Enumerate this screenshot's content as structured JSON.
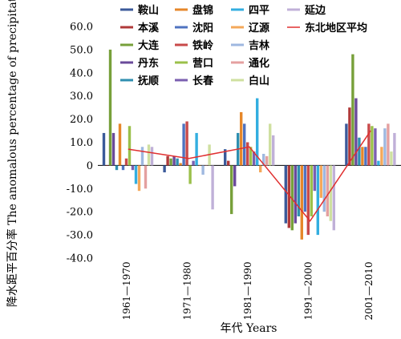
{
  "chart_data": {
    "type": "bar",
    "xlabel": "年代 Years",
    "ylabel": "降水距平百分率 The anomalous percentage of precipitation/%",
    "ylim": [
      -40,
      60
    ],
    "y_ticks": [
      "60.0",
      "50.0",
      "40.0",
      "30.0",
      "20.0",
      "10.0",
      "0",
      "-10.0",
      "-20.0",
      "-30.0",
      "-40.0"
    ],
    "categories": [
      "1961—1970",
      "1971—1980",
      "1981—1990",
      "1991—2000",
      "2001—2010"
    ],
    "series": [
      {
        "name": "鞍山",
        "color": "#3b5a9a",
        "values": [
          14,
          -3,
          7,
          -25,
          18
        ]
      },
      {
        "name": "本溪",
        "color": "#b03a3a",
        "values": [
          0,
          4,
          2,
          -27,
          25
        ]
      },
      {
        "name": "大连",
        "color": "#77a03a",
        "values": [
          50,
          3,
          -21,
          -28,
          48
        ]
      },
      {
        "name": "丹东",
        "color": "#6a4a9a",
        "values": [
          14,
          4,
          -9,
          -25,
          29
        ]
      },
      {
        "name": "抚顺",
        "color": "#2f8fb0",
        "values": [
          -2,
          3,
          14,
          -22,
          12
        ]
      },
      {
        "name": "盘锦",
        "color": "#e6872a",
        "values": [
          18,
          1,
          23,
          -32,
          8
        ]
      },
      {
        "name": "沈阳",
        "color": "#4f73c0",
        "values": [
          -2,
          18,
          18,
          -20,
          8
        ]
      },
      {
        "name": "铁岭",
        "color": "#c84a4a",
        "values": [
          3,
          19,
          10,
          -30,
          18
        ]
      },
      {
        "name": "营口",
        "color": "#9bc04a",
        "values": [
          17,
          -8,
          8,
          -22,
          17
        ]
      },
      {
        "name": "长春",
        "color": "#7b5fb0",
        "values": [
          -2,
          2,
          6,
          -11,
          16
        ]
      },
      {
        "name": "四平",
        "color": "#33aee0",
        "values": [
          -8,
          14,
          29,
          -30,
          2
        ]
      },
      {
        "name": "辽源",
        "color": "#f4a85a",
        "values": [
          -11,
          0,
          -3,
          -14,
          8
        ]
      },
      {
        "name": "吉林",
        "color": "#9fb8e0",
        "values": [
          8,
          -4,
          5,
          -20,
          16
        ]
      },
      {
        "name": "通化",
        "color": "#e4a0a0",
        "values": [
          -10,
          0,
          4,
          -22,
          18
        ]
      },
      {
        "name": "白山",
        "color": "#cfe0a0",
        "values": [
          9,
          9,
          18,
          -24,
          6
        ]
      },
      {
        "name": "延边",
        "color": "#c0b0d8",
        "values": [
          8,
          -19,
          13,
          -28,
          14
        ]
      }
    ],
    "average_line": {
      "name": "东北地区平均",
      "color": "#e03030",
      "values": [
        7,
        3,
        8,
        -24,
        15
      ]
    }
  }
}
